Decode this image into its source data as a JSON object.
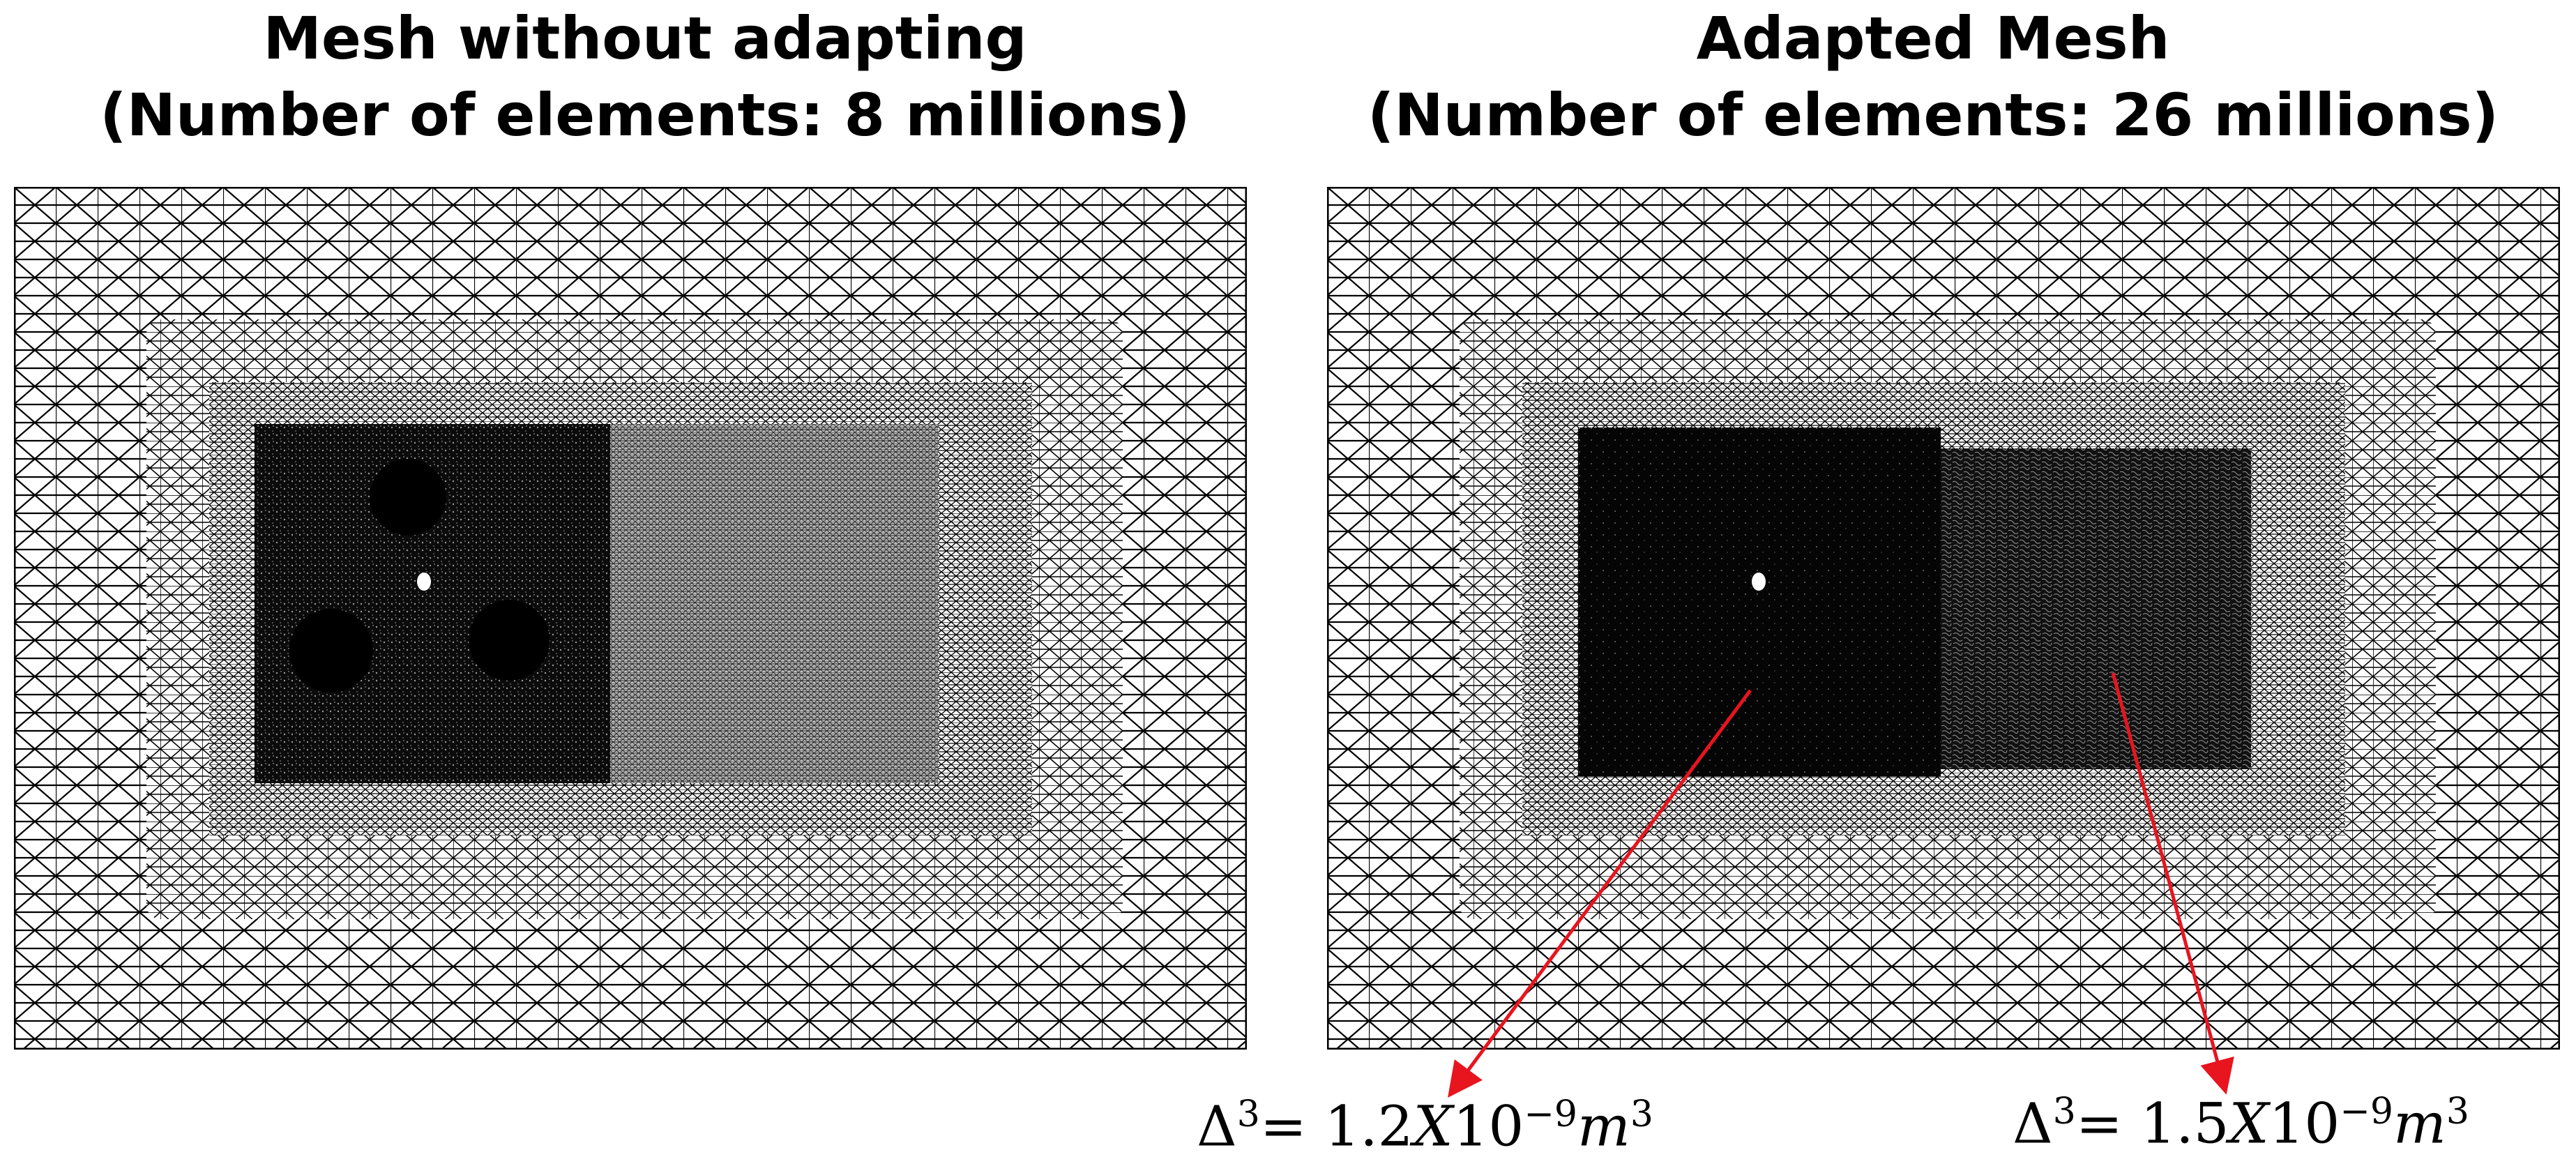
{
  "titles": {
    "left": {
      "line1": "Mesh without adapting",
      "line2": "(Number of elements: 8 millions)"
    },
    "right": {
      "line1": "Adapted Mesh",
      "line2": "(Number of elements: 26 millions)"
    }
  },
  "annotations": {
    "left": {
      "prefix": "Δ",
      "exp": "3",
      "eq": "= 1.2",
      "x": "X",
      "base": "10",
      "power": "−9",
      "unit": "m",
      "unit_exp": "3"
    },
    "right": {
      "prefix": "Δ",
      "exp": "3",
      "eq": "= 1.5",
      "x": "X",
      "base": "10",
      "power": "−9",
      "unit": "m",
      "unit_exp": "3"
    }
  },
  "colors": {
    "mesh_line": "#000000",
    "background": "#ffffff",
    "arrow": "#e8141e",
    "refined_gray": "#8a8a8a",
    "dense_black": "#0a0a0a"
  }
}
